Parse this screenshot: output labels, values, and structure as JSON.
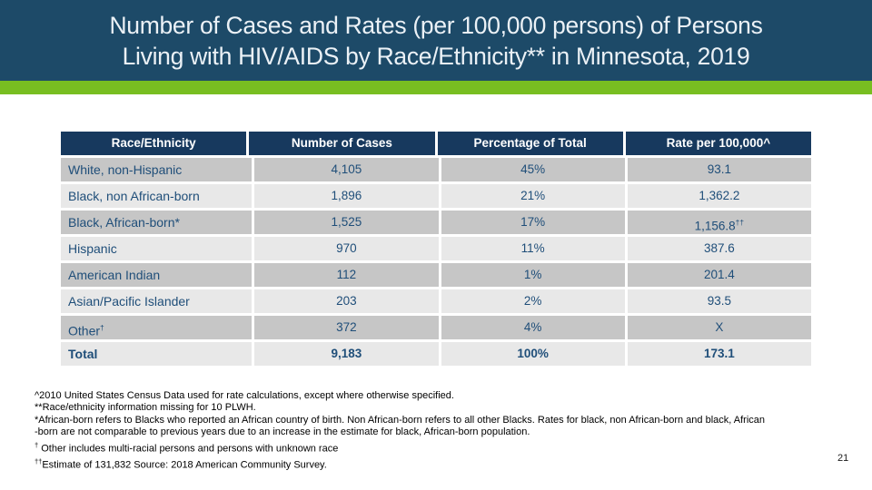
{
  "slide": {
    "title_line1": "Number of Cases and Rates (per 100,000 persons) of Persons",
    "title_line2": "Living with HIV/AIDS by Race/Ethnicity** in Minnesota, 2019",
    "page_number": "21"
  },
  "colors": {
    "banner_navy": "#1d4a68",
    "table_header_navy": "#17395e",
    "accent_green": "#78be21",
    "row_dark": "#c6c6c6",
    "row_light": "#e8e8e8",
    "cell_text_navy": "#1f4e79",
    "title_text": "#ebf1f6",
    "footnote_text": "#000000"
  },
  "table": {
    "headers": [
      {
        "key": "race-ethnicity",
        "label": "Race/Ethnicity"
      },
      {
        "key": "number-of-cases",
        "label": "Number of Cases"
      },
      {
        "key": "percentage-of-total",
        "label": "Percentage of Total"
      },
      {
        "key": "rate-per-100000",
        "label": "Rate per 100,000^"
      }
    ],
    "rows": [
      {
        "id": "white-non-hispanic",
        "race": "White, non-Hispanic",
        "race_sup": "",
        "cases": "4,105",
        "pct": "45%",
        "rate": "93.1",
        "rate_sup": "",
        "bold": false
      },
      {
        "id": "black-non-african-born",
        "race": "Black, non African-born",
        "race_sup": "",
        "cases": "1,896",
        "pct": "21%",
        "rate": "1,362.2",
        "rate_sup": "",
        "bold": false
      },
      {
        "id": "black-african-born",
        "race": "Black, African-born*",
        "race_sup": "",
        "cases": "1,525",
        "pct": "17%",
        "rate": "1,156.8",
        "rate_sup": "††",
        "bold": false
      },
      {
        "id": "hispanic",
        "race": "Hispanic",
        "race_sup": "",
        "cases": "970",
        "pct": "11%",
        "rate": "387.6",
        "rate_sup": "",
        "bold": false
      },
      {
        "id": "american-indian",
        "race": "American Indian",
        "race_sup": "",
        "cases": "112",
        "pct": "1%",
        "rate": "201.4",
        "rate_sup": "",
        "bold": false
      },
      {
        "id": "asian-pacific-islander",
        "race": "Asian/Pacific Islander",
        "race_sup": "",
        "cases": "203",
        "pct": "2%",
        "rate": "93.5",
        "rate_sup": "",
        "bold": false
      },
      {
        "id": "other",
        "race": "Other",
        "race_sup": "†",
        "cases": "372",
        "pct": "4%",
        "rate": "X",
        "rate_sup": "",
        "bold": false
      },
      {
        "id": "total",
        "race": "Total",
        "race_sup": "",
        "cases": "9,183",
        "pct": "100%",
        "rate": "173.1",
        "rate_sup": "",
        "bold": true
      }
    ]
  },
  "footnotes": [
    {
      "marker": "^",
      "sup": false,
      "text": "2010 United States Census Data used for rate calculations, except where otherwise specified."
    },
    {
      "marker": "**",
      "sup": false,
      "text": "Race/ethnicity information missing for 10 PLWH."
    },
    {
      "marker": "*",
      "sup": false,
      "text": "African-born refers to Blacks who reported an African country of birth. Non African-born refers to all other Blacks. Rates for black, non African-born and black, African"
    },
    {
      "marker": "",
      "sup": false,
      "text": "-born are not comparable to previous years due to an increase in the estimate for black, African-born population."
    },
    {
      "marker": "†",
      "sup": true,
      "text": " Other includes multi-racial persons and persons with unknown race"
    },
    {
      "marker": "††",
      "sup": true,
      "text": "Estimate of 131,832 Source: 2018 American Community Survey."
    }
  ]
}
